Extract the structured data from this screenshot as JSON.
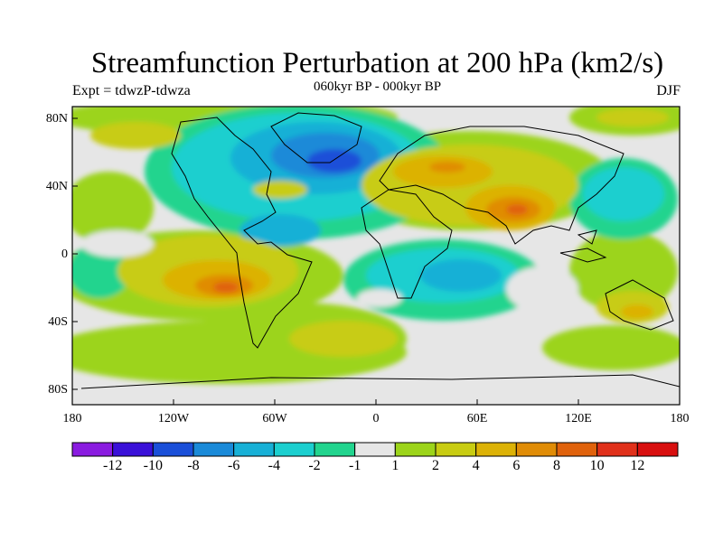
{
  "figure": {
    "title": "Streamfunction Perturbation at 200 hPa (km2/s)",
    "subtitle": "060kyr BP - 000kyr BP",
    "left_label": "Expt = tdwzP-tdwza",
    "right_label": "DJF"
  },
  "axes": {
    "lat_ticks": [
      "80N",
      "40N",
      "0",
      "40S",
      "80S"
    ],
    "lon_ticks": [
      "180",
      "120W",
      "60W",
      "0",
      "60E",
      "120E",
      "180"
    ]
  },
  "colorbar": {
    "labels": [
      "-12",
      "-10",
      "-8",
      "-6",
      "-4",
      "-2",
      "-1",
      "1",
      "2",
      "4",
      "6",
      "8",
      "10",
      "12"
    ],
    "colors": [
      "#8a1be0",
      "#3a10d8",
      "#1a4fd8",
      "#1a8ad8",
      "#17b0d6",
      "#1ccfcf",
      "#22d48e",
      "#e6e6e6",
      "#9cd41a",
      "#c8cc12",
      "#dcb206",
      "#e08c06",
      "#e0620c",
      "#e0301a",
      "#d80f0f"
    ]
  }
}
